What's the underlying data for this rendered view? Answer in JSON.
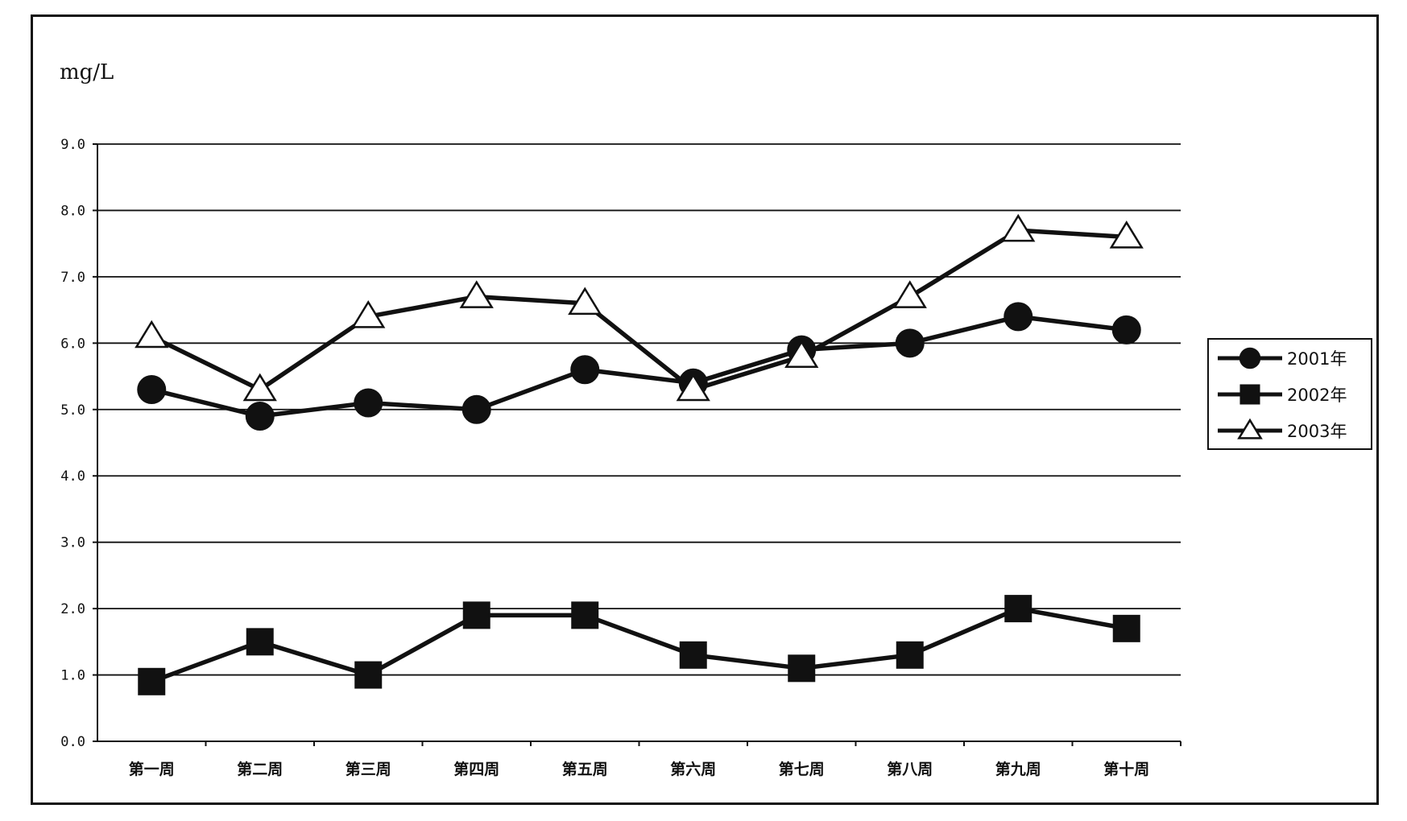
{
  "chart_data": {
    "type": "line",
    "ylabel": "mg/L",
    "ylim": [
      0,
      9
    ],
    "yticks": [
      "0.0",
      "1.0",
      "2.0",
      "3.0",
      "4.0",
      "5.0",
      "6.0",
      "7.0",
      "8.0",
      "9.0"
    ],
    "categories": [
      "第一周",
      "第二周",
      "第三周",
      "第四周",
      "第五周",
      "第六周",
      "第七周",
      "第八周",
      "第九周",
      "第十周"
    ],
    "grid": true,
    "legend_position": "right",
    "series": [
      {
        "name": "2001年",
        "marker": "circle",
        "values": [
          5.3,
          4.9,
          5.1,
          5.0,
          5.6,
          5.4,
          5.9,
          6.0,
          6.4,
          6.2
        ]
      },
      {
        "name": "2002年",
        "marker": "square",
        "values": [
          0.9,
          1.5,
          1.0,
          1.9,
          1.9,
          1.3,
          1.1,
          1.3,
          2.0,
          1.7
        ]
      },
      {
        "name": "2003年",
        "marker": "triangle",
        "values": [
          6.1,
          5.3,
          6.4,
          6.7,
          6.6,
          5.3,
          5.8,
          6.7,
          7.7,
          7.6
        ]
      }
    ]
  }
}
